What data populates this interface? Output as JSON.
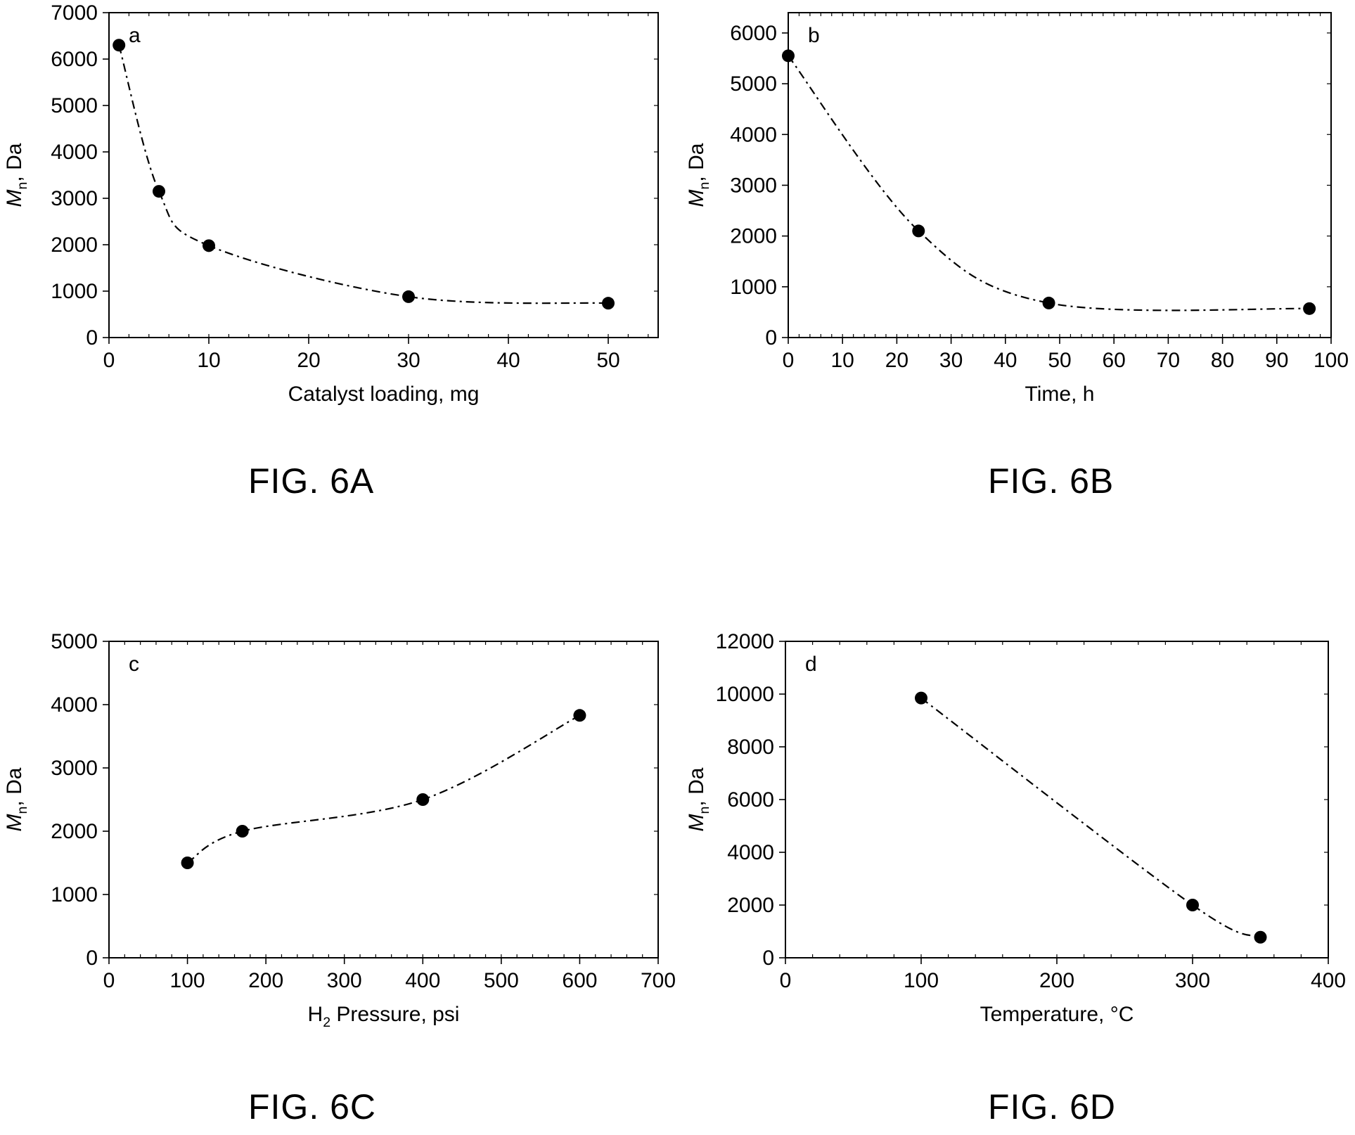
{
  "chart_data": [
    {
      "type": "line",
      "panel_label": "a",
      "caption": "FIG. 6A",
      "xlabel": "Catalyst loading, mg",
      "ylabel": {
        "symbol": "M",
        "subscript": "n",
        "rest": ", Da"
      },
      "xlim": [
        0,
        55
      ],
      "ylim": [
        0,
        7000
      ],
      "xticks": [
        0,
        10,
        20,
        30,
        40,
        50
      ],
      "yticks": [
        0,
        1000,
        2000,
        3000,
        4000,
        5000,
        6000,
        7000
      ],
      "x": [
        1,
        5,
        10,
        30,
        50
      ],
      "y": [
        6300,
        3150,
        1980,
        880,
        740
      ],
      "style": {
        "marker": "filled-circle",
        "line": "dash-dot",
        "color": "#000000",
        "grid": false
      }
    },
    {
      "type": "line",
      "panel_label": "b",
      "caption": "FIG. 6B",
      "xlabel": "Time, h",
      "ylabel": {
        "symbol": "M",
        "subscript": "n",
        "rest": ", Da"
      },
      "xlim": [
        0,
        100
      ],
      "ylim": [
        0,
        6400
      ],
      "xticks": [
        0,
        10,
        20,
        30,
        40,
        50,
        60,
        70,
        80,
        90,
        100
      ],
      "yticks": [
        0,
        1000,
        2000,
        3000,
        4000,
        5000,
        6000
      ],
      "x": [
        0,
        24,
        48,
        96
      ],
      "y": [
        5550,
        2100,
        680,
        570
      ],
      "style": {
        "marker": "filled-circle",
        "line": "dash-dot",
        "color": "#000000",
        "grid": false
      }
    },
    {
      "type": "line",
      "panel_label": "c",
      "caption": "FIG. 6C",
      "xlabel": {
        "pre": "H",
        "subscript": "2",
        "rest": " Pressure, psi"
      },
      "ylabel": {
        "symbol": "M",
        "subscript": "n",
        "rest": ", Da"
      },
      "xlim": [
        0,
        700
      ],
      "ylim": [
        0,
        5000
      ],
      "xticks": [
        0,
        100,
        200,
        300,
        400,
        500,
        600,
        700
      ],
      "yticks": [
        0,
        1000,
        2000,
        3000,
        4000,
        5000
      ],
      "x": [
        100,
        170,
        400,
        600
      ],
      "y": [
        1500,
        2000,
        2500,
        3830
      ],
      "style": {
        "marker": "filled-circle",
        "line": "dash-dot",
        "color": "#000000",
        "grid": false
      }
    },
    {
      "type": "line",
      "panel_label": "d",
      "caption": "FIG. 6D",
      "xlabel": "Temperature, °C",
      "ylabel": {
        "symbol": "M",
        "subscript": "n",
        "rest": ", Da"
      },
      "xlim": [
        0,
        400
      ],
      "ylim": [
        0,
        12000
      ],
      "xticks": [
        0,
        100,
        200,
        300,
        400
      ],
      "yticks": [
        0,
        2000,
        4000,
        6000,
        8000,
        10000,
        12000
      ],
      "x": [
        100,
        300,
        350
      ],
      "y": [
        9850,
        2000,
        780
      ],
      "style": {
        "marker": "filled-circle",
        "line": "dash-dot",
        "color": "#000000",
        "grid": false
      }
    }
  ]
}
